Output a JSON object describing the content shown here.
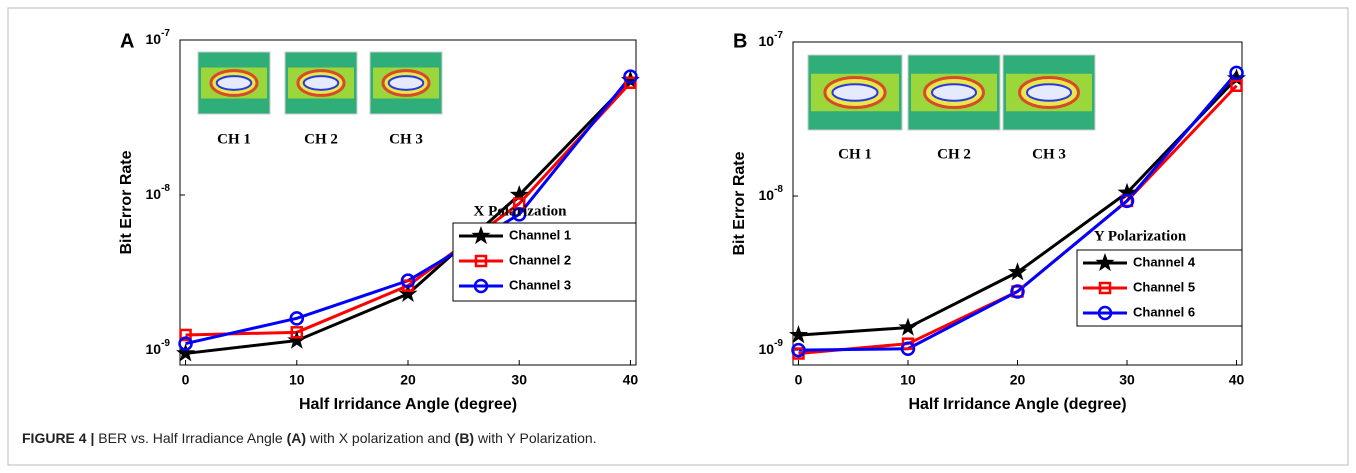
{
  "chart_data": [
    {
      "type": "line",
      "panel_label": "A",
      "x_label": "Half Irridance Angle (degree)",
      "y_label": "Bit Error Rate",
      "x": [
        0,
        10,
        20,
        30,
        40
      ],
      "xlim": [
        -0.5,
        40.5
      ],
      "xticks": [
        0,
        10,
        20,
        30,
        40
      ],
      "log_scale": true,
      "ylim": [
        8e-10,
        1e-07
      ],
      "yticks": [
        {
          "value": 1e-09,
          "label": "10",
          "exponent": "-9"
        },
        {
          "value": 1e-08,
          "label": "10",
          "exponent": "-8"
        },
        {
          "value": 1e-07,
          "label": "10",
          "exponent": "-7"
        }
      ],
      "annotation": "X Polarization",
      "inset_labels": [
        "CH 1",
        "CH 2",
        "CH 3"
      ],
      "legend": "lower right",
      "series": [
        {
          "name": "Channel 1",
          "color": "#000000",
          "marker": "star",
          "values": [
            9.5e-10,
            1.15e-09,
            2.3e-09,
            1e-08,
            5.5e-08
          ]
        },
        {
          "name": "Channel 2",
          "color": "#ff0000",
          "marker": "square",
          "values": [
            1.25e-09,
            1.3e-09,
            2.6e-09,
            8.8e-09,
            5.3e-08
          ]
        },
        {
          "name": "Channel 3",
          "color": "#0000ff",
          "marker": "circle",
          "values": [
            1.1e-09,
            1.6e-09,
            2.8e-09,
            7.5e-09,
            5.8e-08
          ]
        }
      ]
    },
    {
      "type": "line",
      "panel_label": "B",
      "x_label": "Half Irridance Angle (degree)",
      "y_label": "Bit Error Rate",
      "x": [
        0,
        10,
        20,
        30,
        40
      ],
      "xlim": [
        -0.5,
        40.5
      ],
      "xticks": [
        0,
        10,
        20,
        30,
        40
      ],
      "log_scale": true,
      "ylim": [
        8e-10,
        1e-07
      ],
      "yticks": [
        {
          "value": 1e-09,
          "label": "10",
          "exponent": "-9"
        },
        {
          "value": 1e-08,
          "label": "10",
          "exponent": "-8"
        },
        {
          "value": 1e-07,
          "label": "10",
          "exponent": "-7"
        }
      ],
      "annotation": "Y Polarization",
      "inset_labels": [
        "CH 1",
        "CH 2",
        "CH 3"
      ],
      "legend": "lower right",
      "series": [
        {
          "name": "Channel 4",
          "color": "#000000",
          "marker": "star",
          "values": [
            1.25e-09,
            1.4e-09,
            3.2e-09,
            1.05e-08,
            5.8e-08
          ]
        },
        {
          "name": "Channel 5",
          "color": "#ff0000",
          "marker": "square",
          "values": [
            9.5e-10,
            1.1e-09,
            2.4e-09,
            9.3e-09,
            5.2e-08
          ]
        },
        {
          "name": "Channel 6",
          "color": "#0000ff",
          "marker": "circle",
          "values": [
            1e-09,
            1.02e-09,
            2.4e-09,
            9.3e-09,
            6.3e-08
          ]
        }
      ]
    }
  ],
  "caption": [
    {
      "text": "FIGURE 4 |",
      "bold": true
    },
    {
      "text": " BER vs. Half Irradiance Angle ",
      "bold": false
    },
    {
      "text": "(A)",
      "bold": true
    },
    {
      "text": " with X polarization and ",
      "bold": false
    },
    {
      "text": "(B)",
      "bold": true
    },
    {
      "text": " with Y Polarization.",
      "bold": false
    }
  ]
}
